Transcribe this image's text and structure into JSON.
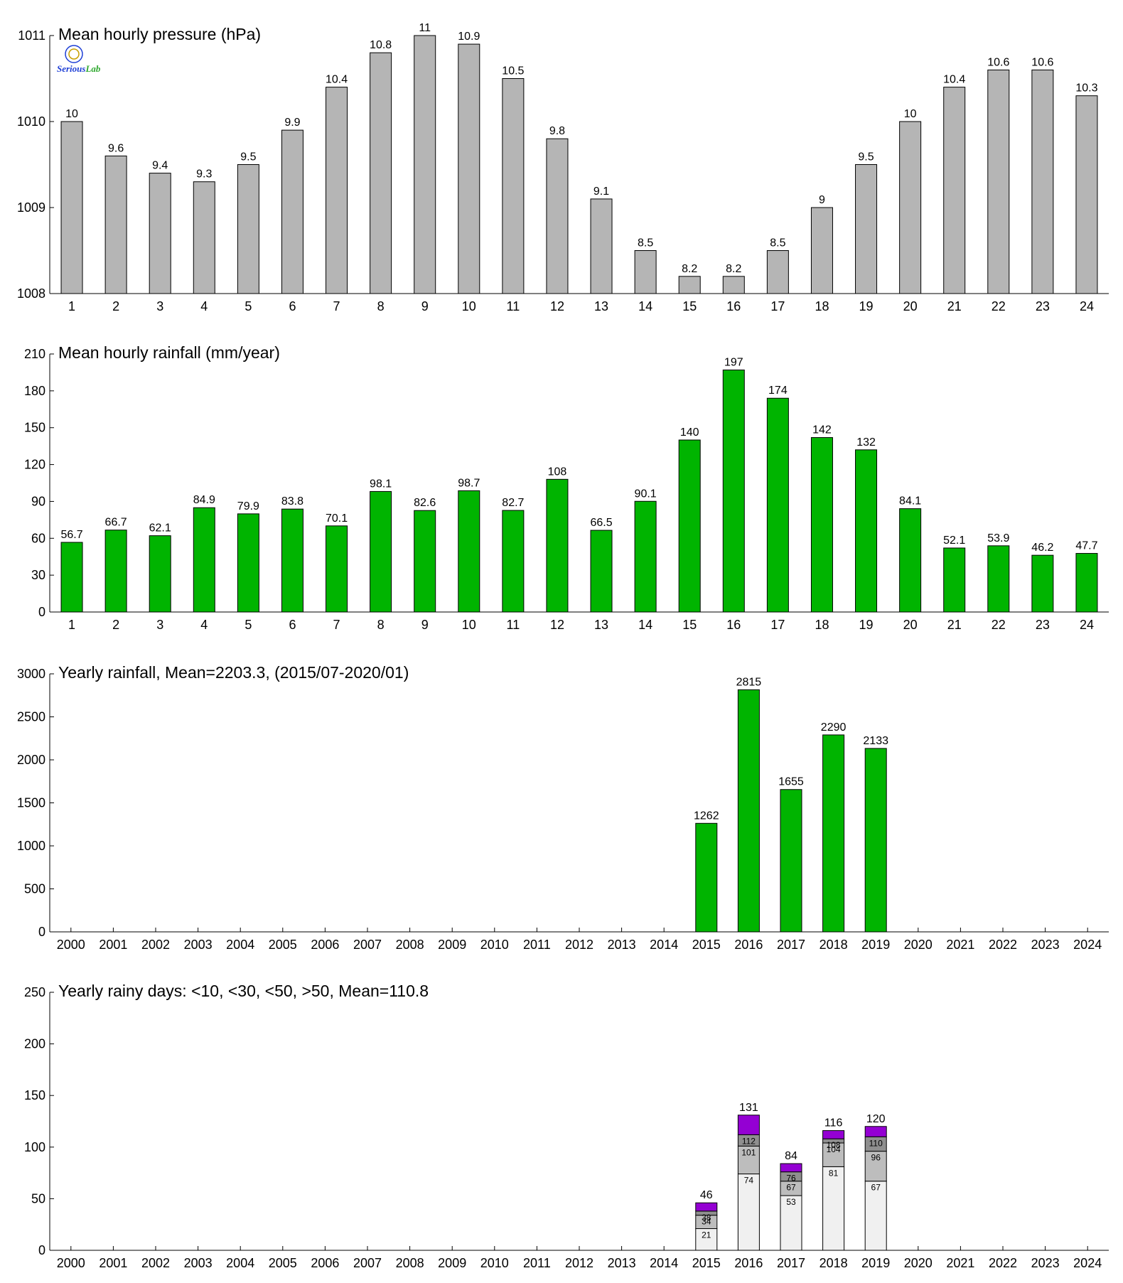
{
  "logo": {
    "text": "SeriousLab",
    "colors": [
      "#1e3fd6",
      "#e0142d",
      "#2fa82f"
    ]
  },
  "chart_data": [
    {
      "id": "pressure",
      "type": "bar",
      "title": "Mean hourly pressure (hPa)",
      "bar_color": "#b5b5b5",
      "categories": [
        "1",
        "2",
        "3",
        "4",
        "5",
        "6",
        "7",
        "8",
        "9",
        "10",
        "11",
        "12",
        "13",
        "14",
        "15",
        "16",
        "17",
        "18",
        "19",
        "20",
        "21",
        "22",
        "23",
        "24"
      ],
      "values": [
        1010.0,
        1009.6,
        1009.4,
        1009.3,
        1009.5,
        1009.9,
        1010.4,
        1010.8,
        1011.0,
        1010.9,
        1010.5,
        1009.8,
        1009.1,
        1008.5,
        1008.2,
        1008.2,
        1008.5,
        1009.0,
        1009.5,
        1010.0,
        1010.4,
        1010.6,
        1010.6,
        1010.3
      ],
      "data_labels": [
        "10",
        "9.6",
        "9.4",
        "9.3",
        "9.5",
        "9.9",
        "10.4",
        "10.8",
        "11",
        "10.9",
        "10.5",
        "9.8",
        "9.1",
        "8.5",
        "8.2",
        "8.2",
        "8.5",
        "9",
        "9.5",
        "10",
        "10.4",
        "10.6",
        "10.6",
        "10.3"
      ],
      "ylim": [
        1008,
        1011
      ],
      "yticks": [
        1008,
        1009,
        1010,
        1011
      ],
      "grid": false
    },
    {
      "id": "hourly-rain",
      "type": "bar",
      "title": "Mean hourly rainfall (mm/year)",
      "bar_color": "#00b400",
      "categories": [
        "1",
        "2",
        "3",
        "4",
        "5",
        "6",
        "7",
        "8",
        "9",
        "10",
        "11",
        "12",
        "13",
        "14",
        "15",
        "16",
        "17",
        "18",
        "19",
        "20",
        "21",
        "22",
        "23",
        "24"
      ],
      "values": [
        56.7,
        66.7,
        62.1,
        84.9,
        79.9,
        83.8,
        70.1,
        98.1,
        82.6,
        98.7,
        82.7,
        108,
        66.5,
        90.1,
        140,
        197,
        174,
        142,
        132,
        84.1,
        52.1,
        53.9,
        46.2,
        47.7
      ],
      "data_labels": [
        "56.7",
        "66.7",
        "62.1",
        "84.9",
        "79.9",
        "83.8",
        "70.1",
        "98.1",
        "82.6",
        "98.7",
        "82.7",
        "108",
        "66.5",
        "90.1",
        "140",
        "197",
        "174",
        "142",
        "132",
        "84.1",
        "52.1",
        "53.9",
        "46.2",
        "47.7"
      ],
      "ylim": [
        0,
        210
      ],
      "yticks": [
        0,
        30,
        60,
        90,
        120,
        150,
        180,
        210
      ],
      "grid": false
    },
    {
      "id": "yearly-rain",
      "type": "bar",
      "title": "Yearly rainfall, Mean=2203.3, (2015/07-2020/01)",
      "bar_color": "#00b400",
      "categories": [
        "2000",
        "2001",
        "2002",
        "2003",
        "2004",
        "2005",
        "2006",
        "2007",
        "2008",
        "2009",
        "2010",
        "2011",
        "2012",
        "2013",
        "2014",
        "2015",
        "2016",
        "2017",
        "2018",
        "2019",
        "2020",
        "2021",
        "2022",
        "2023",
        "2024"
      ],
      "values": [
        null,
        null,
        null,
        null,
        null,
        null,
        null,
        null,
        null,
        null,
        null,
        null,
        null,
        null,
        null,
        1262,
        2815,
        1655,
        2290,
        2133,
        null,
        null,
        null,
        null,
        null
      ],
      "data_labels": [
        "",
        "",
        "",
        "",
        "",
        "",
        "",
        "",
        "",
        "",
        "",
        "",
        "",
        "",
        "",
        "1262",
        "2815",
        "1655",
        "2290",
        "2133",
        "",
        "",
        "",
        "",
        ""
      ],
      "ylim": [
        0,
        3000
      ],
      "yticks": [
        0,
        500,
        1000,
        1500,
        2000,
        2500,
        3000
      ],
      "grid": false
    },
    {
      "id": "rainy-days",
      "type": "bar",
      "stacked": true,
      "title": "Yearly rainy days: <10, <30, <50, >50, Mean=110.8",
      "categories": [
        "2000",
        "2001",
        "2002",
        "2003",
        "2004",
        "2005",
        "2006",
        "2007",
        "2008",
        "2009",
        "2010",
        "2011",
        "2012",
        "2013",
        "2014",
        "2015",
        "2016",
        "2017",
        "2018",
        "2019",
        "2020",
        "2021",
        "2022",
        "2023",
        "2024"
      ],
      "series": [
        {
          "name": "<10",
          "color": "#f0f0f0",
          "cumulative": [
            null,
            null,
            null,
            null,
            null,
            null,
            null,
            null,
            null,
            null,
            null,
            null,
            null,
            null,
            null,
            21,
            74,
            53,
            81,
            67,
            null,
            null,
            null,
            null,
            null
          ],
          "labels": [
            "",
            "",
            "",
            "",
            "",
            "",
            "",
            "",
            "",
            "",
            "",
            "",
            "",
            "",
            "",
            "21",
            "74",
            "53",
            "81",
            "67",
            "",
            "",
            "",
            "",
            ""
          ]
        },
        {
          "name": "<30",
          "color": "#bdbdbd",
          "cumulative": [
            null,
            null,
            null,
            null,
            null,
            null,
            null,
            null,
            null,
            null,
            null,
            null,
            null,
            null,
            null,
            34,
            101,
            67,
            104,
            96,
            null,
            null,
            null,
            null,
            null
          ],
          "labels": [
            "",
            "",
            "",
            "",
            "",
            "",
            "",
            "",
            "",
            "",
            "",
            "",
            "",
            "",
            "",
            "34",
            "101",
            "67",
            "104",
            "96",
            "",
            "",
            "",
            "",
            ""
          ]
        },
        {
          "name": "<50",
          "color": "#8f8f8f",
          "cumulative": [
            null,
            null,
            null,
            null,
            null,
            null,
            null,
            null,
            null,
            null,
            null,
            null,
            null,
            null,
            null,
            38,
            112,
            76,
            108,
            110,
            null,
            null,
            null,
            null,
            null
          ],
          "labels": [
            "",
            "",
            "",
            "",
            "",
            "",
            "",
            "",
            "",
            "",
            "",
            "",
            "",
            "",
            "",
            "38",
            "112",
            "76",
            "108",
            "110",
            "",
            "",
            "",
            "",
            ""
          ]
        },
        {
          "name": ">50",
          "color": "#9400d3",
          "cumulative": [
            null,
            null,
            null,
            null,
            null,
            null,
            null,
            null,
            null,
            null,
            null,
            null,
            null,
            null,
            null,
            46,
            131,
            84,
            116,
            120,
            null,
            null,
            null,
            null,
            null
          ],
          "labels": [
            "",
            "",
            "",
            "",
            "",
            "",
            "",
            "",
            "",
            "",
            "",
            "",
            "",
            "",
            "",
            "46",
            "131",
            "84",
            "116",
            "120",
            "",
            "",
            "",
            "",
            ""
          ]
        }
      ],
      "ylim": [
        0,
        250
      ],
      "yticks": [
        0,
        50,
        100,
        150,
        200,
        250
      ],
      "grid": false
    }
  ]
}
